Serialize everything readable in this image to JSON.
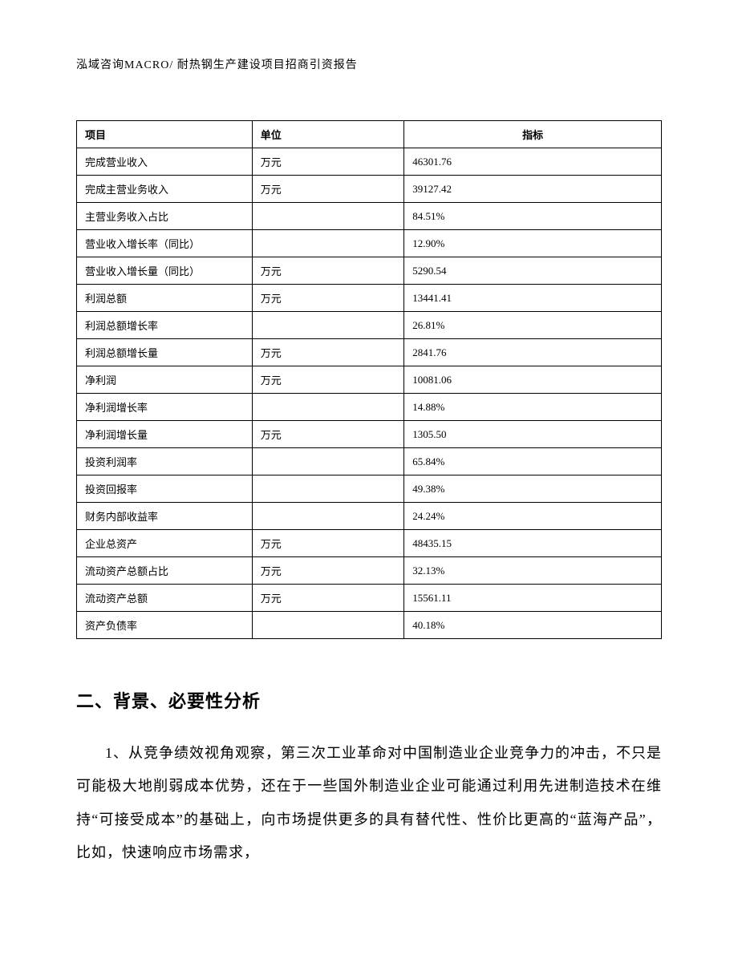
{
  "header": "泓域咨询MACRO/ 耐热钢生产建设项目招商引资报告",
  "table": {
    "columns": [
      "项目",
      "单位",
      "指标"
    ],
    "rows": [
      [
        "完成营业收入",
        "万元",
        "46301.76"
      ],
      [
        "完成主营业务收入",
        "万元",
        "39127.42"
      ],
      [
        "主营业务收入占比",
        "",
        "84.51%"
      ],
      [
        "营业收入增长率（同比）",
        "",
        "12.90%"
      ],
      [
        "营业收入增长量（同比）",
        "万元",
        "5290.54"
      ],
      [
        "利润总额",
        "万元",
        "13441.41"
      ],
      [
        "利润总额增长率",
        "",
        "26.81%"
      ],
      [
        "利润总额增长量",
        "万元",
        "2841.76"
      ],
      [
        "净利润",
        "万元",
        "10081.06"
      ],
      [
        "净利润增长率",
        "",
        "14.88%"
      ],
      [
        "净利润增长量",
        "万元",
        "1305.50"
      ],
      [
        "投资利润率",
        "",
        "65.84%"
      ],
      [
        "投资回报率",
        "",
        "49.38%"
      ],
      [
        "财务内部收益率",
        "",
        "24.24%"
      ],
      [
        "企业总资产",
        "万元",
        "48435.15"
      ],
      [
        "流动资产总额占比",
        "万元",
        "32.13%"
      ],
      [
        "流动资产总额",
        "万元",
        "15561.11"
      ],
      [
        "资产负债率",
        "",
        "40.18%"
      ]
    ]
  },
  "section": {
    "heading": "二、背景、必要性分析",
    "paragraph": "1、从竞争绩效视角观察，第三次工业革命对中国制造业企业竞争力的冲击，不只是可能极大地削弱成本优势，还在于一些国外制造业企业可能通过利用先进制造技术在维持“可接受成本”的基础上，向市场提供更多的具有替代性、性价比更高的“蓝海产品”，比如，快速响应市场需求，"
  }
}
